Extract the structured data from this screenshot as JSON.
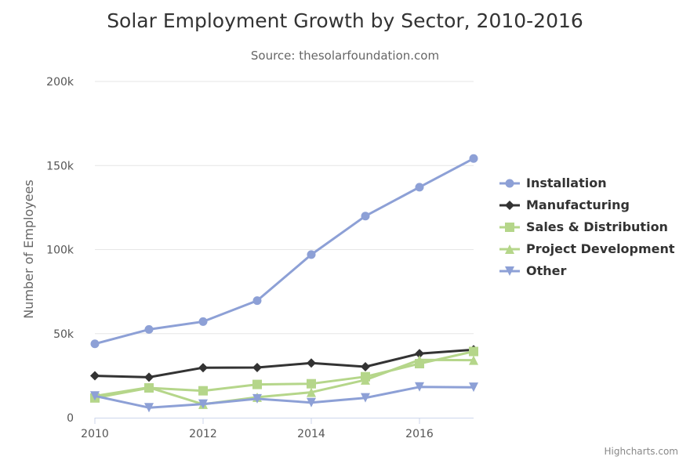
{
  "chart_data": {
    "type": "line",
    "title": "Solar Employment Growth by Sector, 2010-2016",
    "subtitle": "Source: thesolarfoundation.com",
    "xlabel": "",
    "ylabel": "Number of Employees",
    "x": [
      2010,
      2011,
      2012,
      2013,
      2014,
      2015,
      2016,
      2017
    ],
    "xticks": [
      "2010",
      "2012",
      "2014",
      "2016"
    ],
    "yticks": [
      "0",
      "50k",
      "100k",
      "150k",
      "200k"
    ],
    "ylim": [
      0,
      200000
    ],
    "xlim": [
      2010,
      2017
    ],
    "grid": "horizontal",
    "legend": "right",
    "series": [
      {
        "name": "Installation",
        "color": "#8da0d6",
        "marker": "circle",
        "values": [
          43934,
          52503,
          57177,
          69658,
          97031,
          119931,
          137133,
          154175
        ]
      },
      {
        "name": "Manufacturing",
        "color": "#333333",
        "marker": "diamond",
        "values": [
          24916,
          24064,
          29742,
          29851,
          32490,
          30282,
          38121,
          40434
        ]
      },
      {
        "name": "Sales & Distribution",
        "color": "#b5d68a",
        "marker": "square",
        "values": [
          11744,
          17722,
          16005,
          19771,
          20185,
          24377,
          32147,
          39387
        ]
      },
      {
        "name": "Project Development",
        "color": "#b5d68a",
        "marker": "triangle",
        "values": [
          12908,
          18000,
          7988,
          12169,
          15112,
          22452,
          34400,
          34227
        ]
      },
      {
        "name": "Other",
        "color": "#8da0d6",
        "marker": "triangle-down",
        "values": [
          12908,
          5948,
          8105,
          11248,
          8989,
          11816,
          18274,
          18111
        ]
      }
    ],
    "credit": "Highcharts.com"
  }
}
